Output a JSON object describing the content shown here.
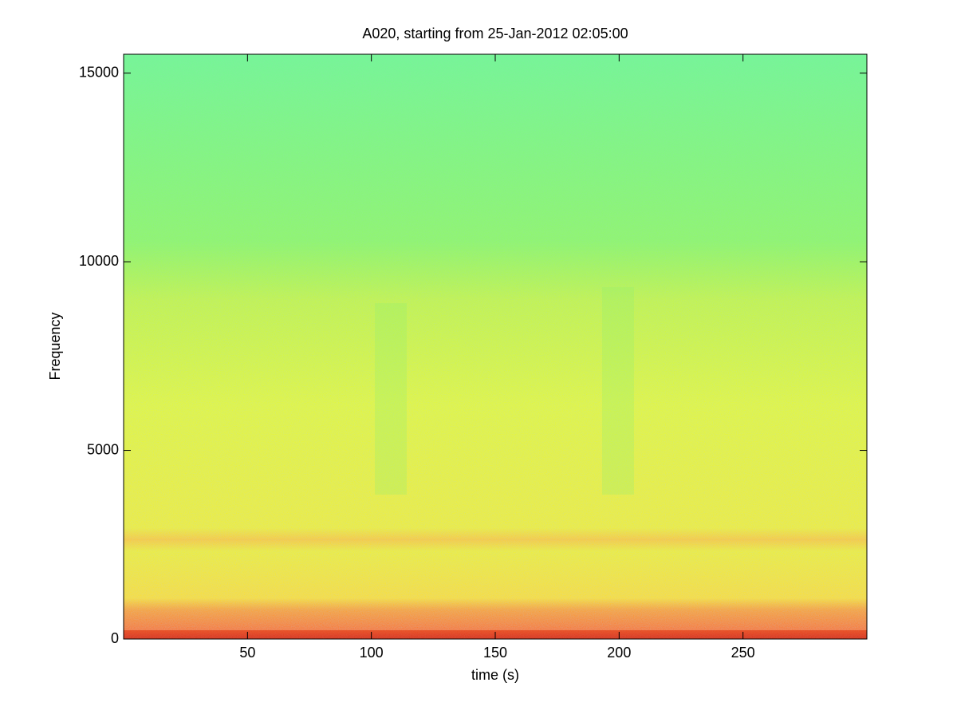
{
  "chart_data": {
    "type": "spectrogram",
    "title": "A020, starting from 25-Jan-2012 02:05:00",
    "xlabel": "time (s)",
    "ylabel": "Frequency",
    "xlim": [
      0,
      300
    ],
    "xticks": [
      50,
      100,
      150,
      200,
      250
    ],
    "ylim": [
      0,
      15500
    ],
    "yticks": [
      0,
      5000,
      10000,
      15000
    ],
    "grid": false
  }
}
